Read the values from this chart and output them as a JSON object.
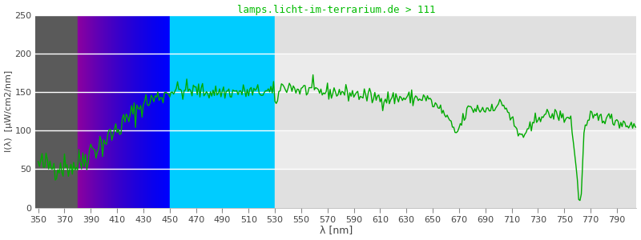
{
  "title": "lamps.licht-im-terrarium.de > 111",
  "title_color": "#00bb00",
  "xlabel": "λ [nm]",
  "ylabel": "I(λ)  [μW/cm2/nm]",
  "xlim": [
    348,
    805
  ],
  "ylim": [
    0,
    250
  ],
  "yticks": [
    0,
    50,
    100,
    150,
    200,
    250
  ],
  "xticks": [
    350,
    370,
    390,
    410,
    430,
    450,
    470,
    490,
    510,
    530,
    550,
    570,
    590,
    610,
    630,
    650,
    670,
    690,
    710,
    730,
    750,
    770,
    790
  ],
  "line_color": "#00aa00",
  "line_width": 1.0,
  "uv_gray_start": 348,
  "uv_gray_end": 380,
  "uv_gray_color": "#5a5a5a",
  "violet_start": 380,
  "violet_end": 450,
  "cyan_start": 450,
  "cyan_end": 530,
  "cyan_color": "#00ccff",
  "green_region_start": 530,
  "green_region_end": 805,
  "green_region_color": "#e8e8e8",
  "white_band_color": "#f4f4f4",
  "grid_line_color": "#ffffff"
}
